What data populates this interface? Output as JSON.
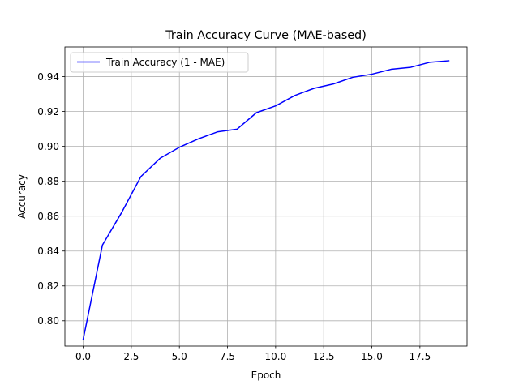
{
  "chart_data": {
    "type": "line",
    "title": "Train Accuracy Curve (MAE-based)",
    "xlabel": "Epoch",
    "ylabel": "Accuracy",
    "xlim": [
      -0.95,
      19.95
    ],
    "ylim": [
      0.7855,
      0.957
    ],
    "x_ticks": [
      0.0,
      2.5,
      5.0,
      7.5,
      10.0,
      12.5,
      15.0,
      17.5
    ],
    "x_tick_labels": [
      "0.0",
      "2.5",
      "5.0",
      "7.5",
      "10.0",
      "12.5",
      "15.0",
      "17.5"
    ],
    "y_ticks": [
      0.8,
      0.82,
      0.84,
      0.86,
      0.88,
      0.9,
      0.92,
      0.94
    ],
    "y_tick_labels": [
      "0.80",
      "0.82",
      "0.84",
      "0.86",
      "0.88",
      "0.90",
      "0.92",
      "0.94"
    ],
    "grid": true,
    "legend_position": "upper-left",
    "series": [
      {
        "name": "Train Accuracy (1 - MAE)",
        "color": "#0000ff",
        "x": [
          0,
          1,
          2,
          3,
          4,
          5,
          6,
          7,
          8,
          9,
          10,
          11,
          12,
          13,
          14,
          15,
          16,
          17,
          18,
          19
        ],
        "values": [
          0.7893,
          0.8434,
          0.8621,
          0.8827,
          0.8932,
          0.8995,
          0.9044,
          0.9084,
          0.9099,
          0.9193,
          0.9232,
          0.9292,
          0.9333,
          0.9358,
          0.9396,
          0.9414,
          0.9442,
          0.9453,
          0.9482,
          0.9491
        ]
      }
    ]
  }
}
